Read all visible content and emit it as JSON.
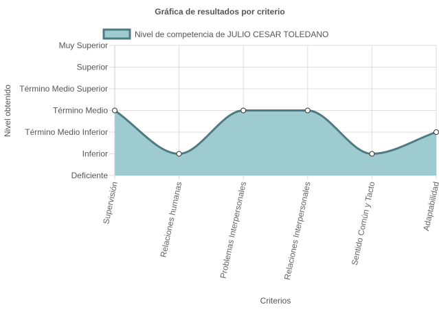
{
  "chart_data": {
    "type": "area",
    "title": "Gráfica de resultados por criterio",
    "xlabel": "Criterios",
    "ylabel": "Nivel obtenido",
    "categories": [
      "Supervisión",
      "Relaciones humanas",
      "Problemas Interpersonales",
      "Relaciones Interpersonales",
      "Sentido Común y Tacto",
      "Adaptabilidad"
    ],
    "y_levels": [
      "Deficiente",
      "Inferior",
      "Término Medio Inferior",
      "Término Medio",
      "Término Medio Superior",
      "Superior",
      "Muy Superior"
    ],
    "ylim": [
      0,
      6
    ],
    "series": [
      {
        "name": "Nivel de competencia de JULIO CESAR TOLEDANO",
        "values": [
          3,
          1,
          3,
          3,
          1,
          2
        ]
      }
    ],
    "legend_position": "top",
    "grid": true,
    "colors": {
      "fill": "#9ecbcf",
      "line": "#4e7a80",
      "point_fill": "#ffffff",
      "grid": "#dddddd"
    }
  }
}
